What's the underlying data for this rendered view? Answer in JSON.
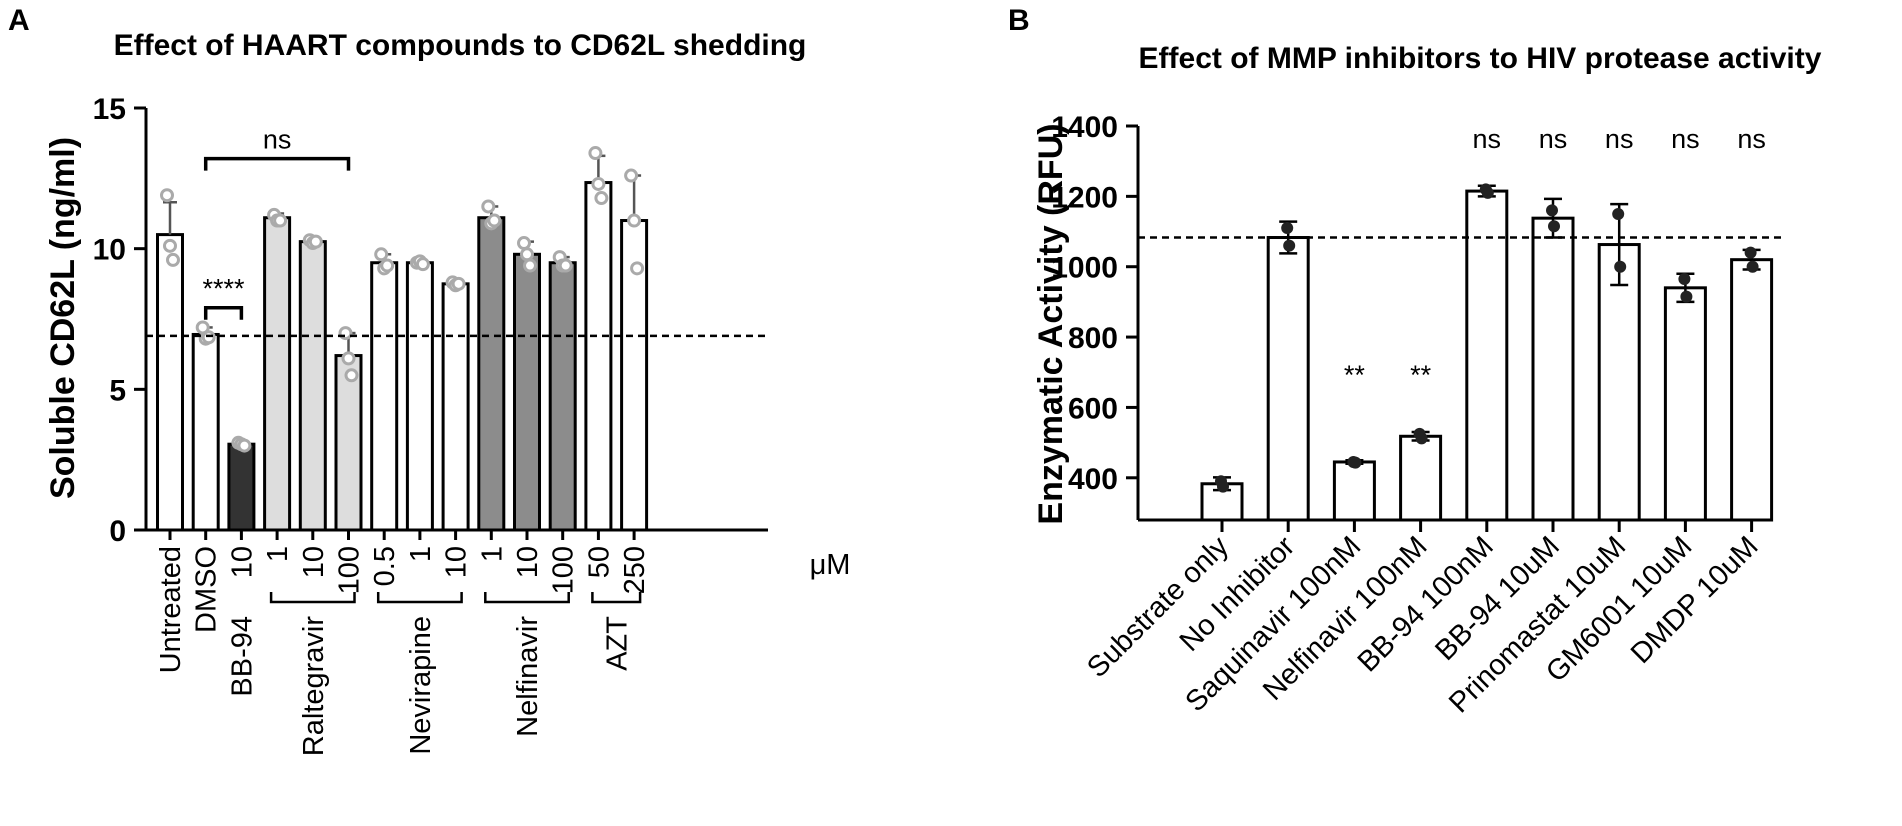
{
  "colors": {
    "white": "#ffffff",
    "light_gray": "#dddddd",
    "dark_gray": "#8c8c8c",
    "black_bar": "#333333",
    "point": "#aaaaaa",
    "point_b": "#222222"
  },
  "chart_data": [
    {
      "panel": "A",
      "type": "bar",
      "title": "Effect of HAART compounds to CD62L shedding",
      "ylabel": "Soluble CD62L (ng/ml)",
      "xlabel": "",
      "unit_label": "μM",
      "ylim": [
        0,
        15
      ],
      "yticks": [
        0,
        5,
        10,
        15
      ],
      "categories": [
        "Untreated",
        "DMSO",
        "10",
        "1",
        "10",
        "100",
        "0.5",
        "1",
        "10",
        "1",
        "10",
        "100",
        "50",
        "250"
      ],
      "values": [
        10.5,
        6.95,
        3.05,
        11.1,
        10.25,
        6.2,
        9.5,
        9.5,
        8.75,
        11.1,
        9.8,
        9.5,
        12.35,
        11.0
      ],
      "errors": [
        1.15,
        0.25,
        0.1,
        0.15,
        0.1,
        0.8,
        0.3,
        0.1,
        0.1,
        0.4,
        0.45,
        0.2,
        0.95,
        1.6
      ],
      "points": [
        [
          11.9,
          10.1,
          9.6
        ],
        [
          7.2,
          6.8,
          6.85
        ],
        [
          3.1,
          3.05,
          3.0
        ],
        [
          11.2,
          11.0,
          11.0
        ],
        [
          10.3,
          10.2,
          10.25
        ],
        [
          7.0,
          6.1,
          5.5
        ],
        [
          9.8,
          9.3,
          9.4
        ],
        [
          9.5,
          9.55,
          9.45
        ],
        [
          8.8,
          8.7,
          8.75
        ],
        [
          11.5,
          10.9,
          11.0
        ],
        [
          10.2,
          9.8,
          9.4
        ],
        [
          9.7,
          9.4,
          9.4
        ],
        [
          13.4,
          12.3,
          11.8
        ],
        [
          12.6,
          11.0,
          9.3
        ]
      ],
      "bar_colors": [
        "white",
        "white",
        "black_bar",
        "light_gray",
        "light_gray",
        "light_gray",
        "white",
        "white",
        "white",
        "dark_gray",
        "dark_gray",
        "dark_gray",
        "white",
        "white"
      ],
      "reference_line": 6.9,
      "groups": [
        {
          "label": "BB-94",
          "from": 2,
          "to": 2
        },
        {
          "label": "Raltegravir",
          "from": 3,
          "to": 5
        },
        {
          "label": "Nevirapine",
          "from": 6,
          "to": 8
        },
        {
          "label": "Nelfinavir",
          "from": 9,
          "to": 11
        },
        {
          "label": "AZT",
          "from": 12,
          "to": 13
        }
      ],
      "significance": [
        {
          "label": "****",
          "from": 1,
          "to": 2,
          "level": 7.9
        },
        {
          "label": "ns",
          "from": 1,
          "to": 5,
          "level": 13.2
        }
      ]
    },
    {
      "panel": "B",
      "type": "bar",
      "title": "Effect of MMP inhibitors to HIV protease activity",
      "ylabel": "Enzymatic Activity (RFU)",
      "xlabel": "",
      "ylim": [
        280,
        1400
      ],
      "yticks": [
        400,
        600,
        800,
        1000,
        1200,
        1400
      ],
      "categories": [
        "Substrate only",
        "No Inhibitor",
        "Saquinavir 100nM",
        "Nelfinavir 100nM",
        "BB-94  100nM",
        "BB-94  10uM",
        "Prinomastat 10uM",
        "GM6001 10uM",
        "DMDP 10uM"
      ],
      "values": [
        383,
        1083,
        445,
        518,
        1215,
        1138,
        1063,
        940,
        1020
      ],
      "errors": [
        18,
        45,
        5,
        12,
        15,
        55,
        115,
        40,
        28
      ],
      "points": [
        [
          390,
          375
        ],
        [
          1110,
          1060
        ],
        [
          445,
          443
        ],
        [
          525,
          512
        ],
        [
          1220,
          1210
        ],
        [
          1160,
          1115
        ],
        [
          1150,
          1000
        ],
        [
          965,
          915
        ],
        [
          1040,
          1000
        ]
      ],
      "reference_line": 1083,
      "annotations": [
        "",
        "",
        "**",
        "**",
        "ns",
        "ns",
        "ns",
        "ns",
        "ns"
      ]
    }
  ]
}
